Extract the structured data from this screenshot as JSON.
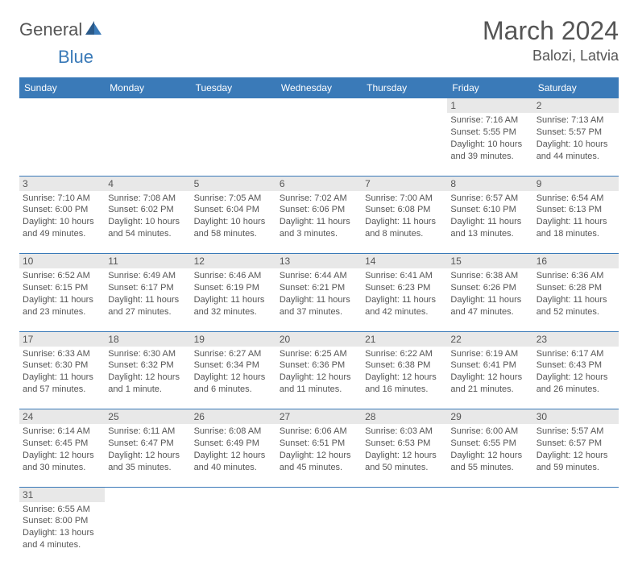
{
  "logo": {
    "text1": "General",
    "text2": "Blue"
  },
  "title": "March 2024",
  "location": "Balozi, Latvia",
  "colors": {
    "header_bg": "#3a7ab8",
    "header_text": "#ffffff",
    "daynum_bg": "#e8e8e8",
    "text": "#555555",
    "row_border": "#3a7ab8"
  },
  "dow": [
    "Sunday",
    "Monday",
    "Tuesday",
    "Wednesday",
    "Thursday",
    "Friday",
    "Saturday"
  ],
  "weeks": [
    {
      "nums": [
        "",
        "",
        "",
        "",
        "",
        "1",
        "2"
      ],
      "cells": [
        {
          "sunrise": "",
          "sunset": "",
          "daylight": ""
        },
        {
          "sunrise": "",
          "sunset": "",
          "daylight": ""
        },
        {
          "sunrise": "",
          "sunset": "",
          "daylight": ""
        },
        {
          "sunrise": "",
          "sunset": "",
          "daylight": ""
        },
        {
          "sunrise": "",
          "sunset": "",
          "daylight": ""
        },
        {
          "sunrise": "Sunrise: 7:16 AM",
          "sunset": "Sunset: 5:55 PM",
          "daylight": "Daylight: 10 hours and 39 minutes."
        },
        {
          "sunrise": "Sunrise: 7:13 AM",
          "sunset": "Sunset: 5:57 PM",
          "daylight": "Daylight: 10 hours and 44 minutes."
        }
      ]
    },
    {
      "nums": [
        "3",
        "4",
        "5",
        "6",
        "7",
        "8",
        "9"
      ],
      "cells": [
        {
          "sunrise": "Sunrise: 7:10 AM",
          "sunset": "Sunset: 6:00 PM",
          "daylight": "Daylight: 10 hours and 49 minutes."
        },
        {
          "sunrise": "Sunrise: 7:08 AM",
          "sunset": "Sunset: 6:02 PM",
          "daylight": "Daylight: 10 hours and 54 minutes."
        },
        {
          "sunrise": "Sunrise: 7:05 AM",
          "sunset": "Sunset: 6:04 PM",
          "daylight": "Daylight: 10 hours and 58 minutes."
        },
        {
          "sunrise": "Sunrise: 7:02 AM",
          "sunset": "Sunset: 6:06 PM",
          "daylight": "Daylight: 11 hours and 3 minutes."
        },
        {
          "sunrise": "Sunrise: 7:00 AM",
          "sunset": "Sunset: 6:08 PM",
          "daylight": "Daylight: 11 hours and 8 minutes."
        },
        {
          "sunrise": "Sunrise: 6:57 AM",
          "sunset": "Sunset: 6:10 PM",
          "daylight": "Daylight: 11 hours and 13 minutes."
        },
        {
          "sunrise": "Sunrise: 6:54 AM",
          "sunset": "Sunset: 6:13 PM",
          "daylight": "Daylight: 11 hours and 18 minutes."
        }
      ]
    },
    {
      "nums": [
        "10",
        "11",
        "12",
        "13",
        "14",
        "15",
        "16"
      ],
      "cells": [
        {
          "sunrise": "Sunrise: 6:52 AM",
          "sunset": "Sunset: 6:15 PM",
          "daylight": "Daylight: 11 hours and 23 minutes."
        },
        {
          "sunrise": "Sunrise: 6:49 AM",
          "sunset": "Sunset: 6:17 PM",
          "daylight": "Daylight: 11 hours and 27 minutes."
        },
        {
          "sunrise": "Sunrise: 6:46 AM",
          "sunset": "Sunset: 6:19 PM",
          "daylight": "Daylight: 11 hours and 32 minutes."
        },
        {
          "sunrise": "Sunrise: 6:44 AM",
          "sunset": "Sunset: 6:21 PM",
          "daylight": "Daylight: 11 hours and 37 minutes."
        },
        {
          "sunrise": "Sunrise: 6:41 AM",
          "sunset": "Sunset: 6:23 PM",
          "daylight": "Daylight: 11 hours and 42 minutes."
        },
        {
          "sunrise": "Sunrise: 6:38 AM",
          "sunset": "Sunset: 6:26 PM",
          "daylight": "Daylight: 11 hours and 47 minutes."
        },
        {
          "sunrise": "Sunrise: 6:36 AM",
          "sunset": "Sunset: 6:28 PM",
          "daylight": "Daylight: 11 hours and 52 minutes."
        }
      ]
    },
    {
      "nums": [
        "17",
        "18",
        "19",
        "20",
        "21",
        "22",
        "23"
      ],
      "cells": [
        {
          "sunrise": "Sunrise: 6:33 AM",
          "sunset": "Sunset: 6:30 PM",
          "daylight": "Daylight: 11 hours and 57 minutes."
        },
        {
          "sunrise": "Sunrise: 6:30 AM",
          "sunset": "Sunset: 6:32 PM",
          "daylight": "Daylight: 12 hours and 1 minute."
        },
        {
          "sunrise": "Sunrise: 6:27 AM",
          "sunset": "Sunset: 6:34 PM",
          "daylight": "Daylight: 12 hours and 6 minutes."
        },
        {
          "sunrise": "Sunrise: 6:25 AM",
          "sunset": "Sunset: 6:36 PM",
          "daylight": "Daylight: 12 hours and 11 minutes."
        },
        {
          "sunrise": "Sunrise: 6:22 AM",
          "sunset": "Sunset: 6:38 PM",
          "daylight": "Daylight: 12 hours and 16 minutes."
        },
        {
          "sunrise": "Sunrise: 6:19 AM",
          "sunset": "Sunset: 6:41 PM",
          "daylight": "Daylight: 12 hours and 21 minutes."
        },
        {
          "sunrise": "Sunrise: 6:17 AM",
          "sunset": "Sunset: 6:43 PM",
          "daylight": "Daylight: 12 hours and 26 minutes."
        }
      ]
    },
    {
      "nums": [
        "24",
        "25",
        "26",
        "27",
        "28",
        "29",
        "30"
      ],
      "cells": [
        {
          "sunrise": "Sunrise: 6:14 AM",
          "sunset": "Sunset: 6:45 PM",
          "daylight": "Daylight: 12 hours and 30 minutes."
        },
        {
          "sunrise": "Sunrise: 6:11 AM",
          "sunset": "Sunset: 6:47 PM",
          "daylight": "Daylight: 12 hours and 35 minutes."
        },
        {
          "sunrise": "Sunrise: 6:08 AM",
          "sunset": "Sunset: 6:49 PM",
          "daylight": "Daylight: 12 hours and 40 minutes."
        },
        {
          "sunrise": "Sunrise: 6:06 AM",
          "sunset": "Sunset: 6:51 PM",
          "daylight": "Daylight: 12 hours and 45 minutes."
        },
        {
          "sunrise": "Sunrise: 6:03 AM",
          "sunset": "Sunset: 6:53 PM",
          "daylight": "Daylight: 12 hours and 50 minutes."
        },
        {
          "sunrise": "Sunrise: 6:00 AM",
          "sunset": "Sunset: 6:55 PM",
          "daylight": "Daylight: 12 hours and 55 minutes."
        },
        {
          "sunrise": "Sunrise: 5:57 AM",
          "sunset": "Sunset: 6:57 PM",
          "daylight": "Daylight: 12 hours and 59 minutes."
        }
      ]
    },
    {
      "nums": [
        "31",
        "",
        "",
        "",
        "",
        "",
        ""
      ],
      "cells": [
        {
          "sunrise": "Sunrise: 6:55 AM",
          "sunset": "Sunset: 8:00 PM",
          "daylight": "Daylight: 13 hours and 4 minutes."
        },
        {
          "sunrise": "",
          "sunset": "",
          "daylight": ""
        },
        {
          "sunrise": "",
          "sunset": "",
          "daylight": ""
        },
        {
          "sunrise": "",
          "sunset": "",
          "daylight": ""
        },
        {
          "sunrise": "",
          "sunset": "",
          "daylight": ""
        },
        {
          "sunrise": "",
          "sunset": "",
          "daylight": ""
        },
        {
          "sunrise": "",
          "sunset": "",
          "daylight": ""
        }
      ]
    }
  ]
}
